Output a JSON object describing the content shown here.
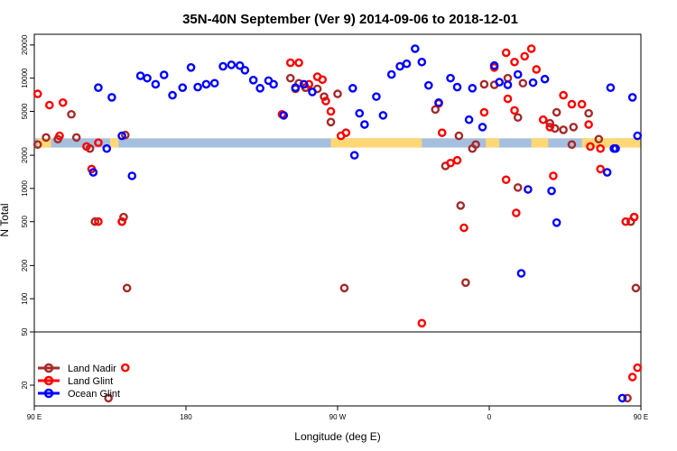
{
  "chart_data": {
    "type": "scatter",
    "title": "35N-40N September (Ver 9)   2014-09-06 to 2018-12-01",
    "xlabel": "Longitude (deg E)",
    "ylabel": "N Total",
    "y_scale": "log",
    "xlim": [
      90,
      450
    ],
    "main_ylim": [
      50,
      25000
    ],
    "lower_ylim": [
      14,
      50
    ],
    "x_ticks": [
      {
        "v": 90,
        "label": "90 E"
      },
      {
        "v": 180,
        "label": "180"
      },
      {
        "v": 270,
        "label": "90 W"
      },
      {
        "v": 360,
        "label": "0"
      },
      {
        "v": 450,
        "label": "90 E"
      },
      {
        "v": 540,
        "label": "180"
      }
    ],
    "y_ticks_main": [
      {
        "v": 100,
        "label": "100"
      },
      {
        "v": 200,
        "label": "200"
      },
      {
        "v": 500,
        "label": "500"
      },
      {
        "v": 1000,
        "label": "1000"
      },
      {
        "v": 2000,
        "label": "2000"
      },
      {
        "v": 5000,
        "label": "5000"
      },
      {
        "v": 10000,
        "label": "10000"
      },
      {
        "v": 20000,
        "label": "20000"
      }
    ],
    "y_ticks_lower": [
      {
        "v": 20,
        "label": "20"
      },
      {
        "v": 50,
        "label": "50"
      }
    ],
    "legend": {
      "position": "bottom-left",
      "entries": [
        {
          "label": "Land Nadir",
          "color": "#a52a2a"
        },
        {
          "label": "Land Glint",
          "color": "#ff0000"
        },
        {
          "label": "Ocean Glint",
          "color": "#0000ff"
        }
      ]
    },
    "land_mask": {
      "ocean_color": "#a7bfdf",
      "land_color": "#ffd875",
      "y_range": [
        2350,
        2850
      ],
      "land_segments": [
        [
          92,
          100
        ],
        [
          135,
          140
        ],
        [
          266,
          320
        ],
        [
          358,
          366
        ],
        [
          385,
          395
        ],
        [
          415,
          500
        ],
        [
          555,
          570
        ]
      ]
    },
    "series": [
      {
        "name": "Land Nadir",
        "color": "#a52a2a",
        "points": [
          [
            92,
            2500
          ],
          [
            97,
            2900
          ],
          [
            104,
            2800
          ],
          [
            112,
            4700
          ],
          [
            115,
            2900
          ],
          [
            123,
            2300
          ],
          [
            144,
            3050
          ],
          [
            242,
            10000
          ],
          [
            245,
            8000
          ],
          [
            247,
            9000
          ],
          [
            251,
            8200
          ],
          [
            258,
            8000
          ],
          [
            262,
            6800
          ],
          [
            266,
            4000
          ],
          [
            270,
            7200
          ],
          [
            251,
            8200
          ],
          [
            328,
            5200
          ],
          [
            334,
            1600
          ],
          [
            342,
            3000
          ],
          [
            350,
            2300
          ],
          [
            357,
            8800
          ],
          [
            363,
            8700
          ],
          [
            371,
            10000
          ],
          [
            377,
            4400
          ],
          [
            380,
            9000
          ],
          [
            343,
            700
          ],
          [
            352,
            2500
          ],
          [
            377,
            1020
          ],
          [
            396,
            3900
          ],
          [
            400,
            4900
          ],
          [
            404,
            3400
          ],
          [
            409,
            2500
          ],
          [
            419,
            4800
          ],
          [
            425,
            2800
          ],
          [
            399,
            3500
          ],
          [
            410,
            3600
          ],
          [
            126,
            500
          ],
          [
            143,
            550
          ],
          [
            142,
            500
          ],
          [
            145,
            125
          ],
          [
            274,
            125
          ],
          [
            346,
            140
          ],
          [
            134,
            16
          ],
          [
            442,
            16
          ],
          [
            447,
            125
          ],
          [
            446,
            550
          ],
          [
            444,
            500
          ]
        ]
      },
      {
        "name": "Land Glint",
        "color": "#ff0000",
        "points": [
          [
            92,
            7200
          ],
          [
            99,
            5700
          ],
          [
            105,
            3000
          ],
          [
            107,
            6000
          ],
          [
            121,
            2400
          ],
          [
            124,
            1500
          ],
          [
            128,
            2600
          ],
          [
            237,
            4700
          ],
          [
            242,
            13800
          ],
          [
            247,
            13800
          ],
          [
            253,
            8800
          ],
          [
            258,
            10300
          ],
          [
            261,
            9700
          ],
          [
            263,
            6200
          ],
          [
            266,
            5000
          ],
          [
            272,
            3000
          ],
          [
            275,
            3200
          ],
          [
            330,
            5900
          ],
          [
            332,
            3200
          ],
          [
            337,
            1700
          ],
          [
            341,
            1800
          ],
          [
            357,
            4900
          ],
          [
            363,
            12500
          ],
          [
            370,
            17000
          ],
          [
            375,
            14000
          ],
          [
            381,
            15800
          ],
          [
            385,
            18500
          ],
          [
            388,
            12000
          ],
          [
            371,
            6500
          ],
          [
            375,
            5100
          ],
          [
            392,
            4200
          ],
          [
            396,
            3600
          ],
          [
            404,
            7000
          ],
          [
            409,
            5800
          ],
          [
            415,
            5800
          ],
          [
            419,
            3800
          ],
          [
            426,
            2300
          ],
          [
            128,
            500
          ],
          [
            142,
            500
          ],
          [
            370,
            1200
          ],
          [
            376,
            600
          ],
          [
            398,
            1300
          ],
          [
            420,
            2400
          ],
          [
            426,
            1500
          ],
          [
            441,
            500
          ],
          [
            446,
            550
          ],
          [
            345,
            440
          ],
          [
            320,
            60
          ],
          [
            144,
            27
          ],
          [
            448,
            27
          ],
          [
            445,
            23
          ]
        ]
      },
      {
        "name": "Ocean Glint",
        "color": "#0000ff",
        "points": [
          [
            125,
            1400
          ],
          [
            128,
            8200
          ],
          [
            133,
            2300
          ],
          [
            136,
            6700
          ],
          [
            142,
            3000
          ],
          [
            148,
            1300
          ],
          [
            153,
            10500
          ],
          [
            157,
            10000
          ],
          [
            162,
            8800
          ],
          [
            167,
            10700
          ],
          [
            172,
            7000
          ],
          [
            178,
            8200
          ],
          [
            183,
            12500
          ],
          [
            187,
            8300
          ],
          [
            192,
            8800
          ],
          [
            197,
            9000
          ],
          [
            202,
            12800
          ],
          [
            207,
            13200
          ],
          [
            212,
            13000
          ],
          [
            215,
            11800
          ],
          [
            220,
            9600
          ],
          [
            224,
            8100
          ],
          [
            229,
            9500
          ],
          [
            232,
            8800
          ],
          [
            238,
            4600
          ],
          [
            245,
            8200
          ],
          [
            250,
            8800
          ],
          [
            255,
            7500
          ],
          [
            279,
            8100
          ],
          [
            283,
            4800
          ],
          [
            286,
            3800
          ],
          [
            293,
            6800
          ],
          [
            297,
            4600
          ],
          [
            302,
            10800
          ],
          [
            307,
            12800
          ],
          [
            311,
            13500
          ],
          [
            316,
            18500
          ],
          [
            320,
            14000
          ],
          [
            324,
            8600
          ],
          [
            330,
            6000
          ],
          [
            337,
            10000
          ],
          [
            341,
            8300
          ],
          [
            348,
            4200
          ],
          [
            350,
            8100
          ],
          [
            356,
            3600
          ],
          [
            363,
            13000
          ],
          [
            366,
            9200
          ],
          [
            371,
            8700
          ],
          [
            377,
            10800
          ],
          [
            383,
            980
          ],
          [
            386,
            9100
          ],
          [
            393,
            9800
          ],
          [
            397,
            950
          ],
          [
            400,
            490
          ],
          [
            379,
            170
          ],
          [
            280,
            2000
          ],
          [
            430,
            1400
          ],
          [
            435,
            2300
          ],
          [
            445,
            6700
          ],
          [
            448,
            3000
          ],
          [
            455,
            1300
          ],
          [
            460,
            10500
          ],
          [
            465,
            10000
          ],
          [
            470,
            8800
          ],
          [
            475,
            10700
          ],
          [
            479,
            7000
          ],
          [
            485,
            8200
          ],
          [
            490,
            12500
          ],
          [
            432,
            8200
          ],
          [
            434,
            2300
          ],
          [
            439,
            16
          ]
        ]
      }
    ]
  }
}
